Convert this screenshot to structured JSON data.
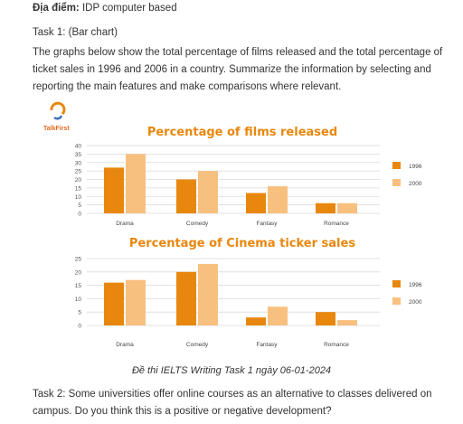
{
  "document": {
    "venue_label": "Địa điểm:",
    "venue_value": " IDP computer based",
    "task1_heading": "Task 1: (Bar chart)",
    "task1_prompt": "The graphs below show the total percentage of films released and the total percentage of ticket sales in 1996 and 2006 in a country. Summarize the information by selecting and reporting the main features and make comparisons where relevant.",
    "logo_text": "TalkFirst",
    "caption": "Đề thi IELTS Writing Task 1 ngày 06-01-2024",
    "task2_prompt": "Task 2: Some universities offer online courses as an alternative to classes delivered on campus. Do you think this is a positive or negative development?"
  },
  "colors": {
    "series_1996": "#e8870e",
    "series_2000": "#f8c07f",
    "title": "#e8870e"
  },
  "chart_data": [
    {
      "type": "bar",
      "title": "Percentage of films released",
      "categories": [
        "Drama",
        "Comedy",
        "Fantasy",
        "Romance"
      ],
      "series": [
        {
          "name": "1996",
          "values": [
            27,
            20,
            12,
            6
          ]
        },
        {
          "name": "2000",
          "values": [
            35,
            25,
            16,
            6
          ]
        }
      ],
      "ylim": [
        0,
        40
      ],
      "yticks": [
        "0",
        "5",
        "10",
        "15",
        "20",
        "25",
        "30",
        "35",
        "40"
      ],
      "grid": true,
      "legend": "right"
    },
    {
      "type": "bar",
      "title": "Percentage of Cinema ticker sales",
      "categories": [
        "Drama",
        "Comedy",
        "Fantasy",
        "Romance"
      ],
      "series": [
        {
          "name": "1996",
          "values": [
            16,
            20,
            3,
            5
          ]
        },
        {
          "name": "2000",
          "values": [
            17,
            23,
            7,
            2
          ]
        }
      ],
      "ylim": [
        0,
        25
      ],
      "yticks": [
        "0",
        "5",
        "10",
        "15",
        "20",
        "25"
      ],
      "grid": true,
      "legend": "right"
    }
  ]
}
